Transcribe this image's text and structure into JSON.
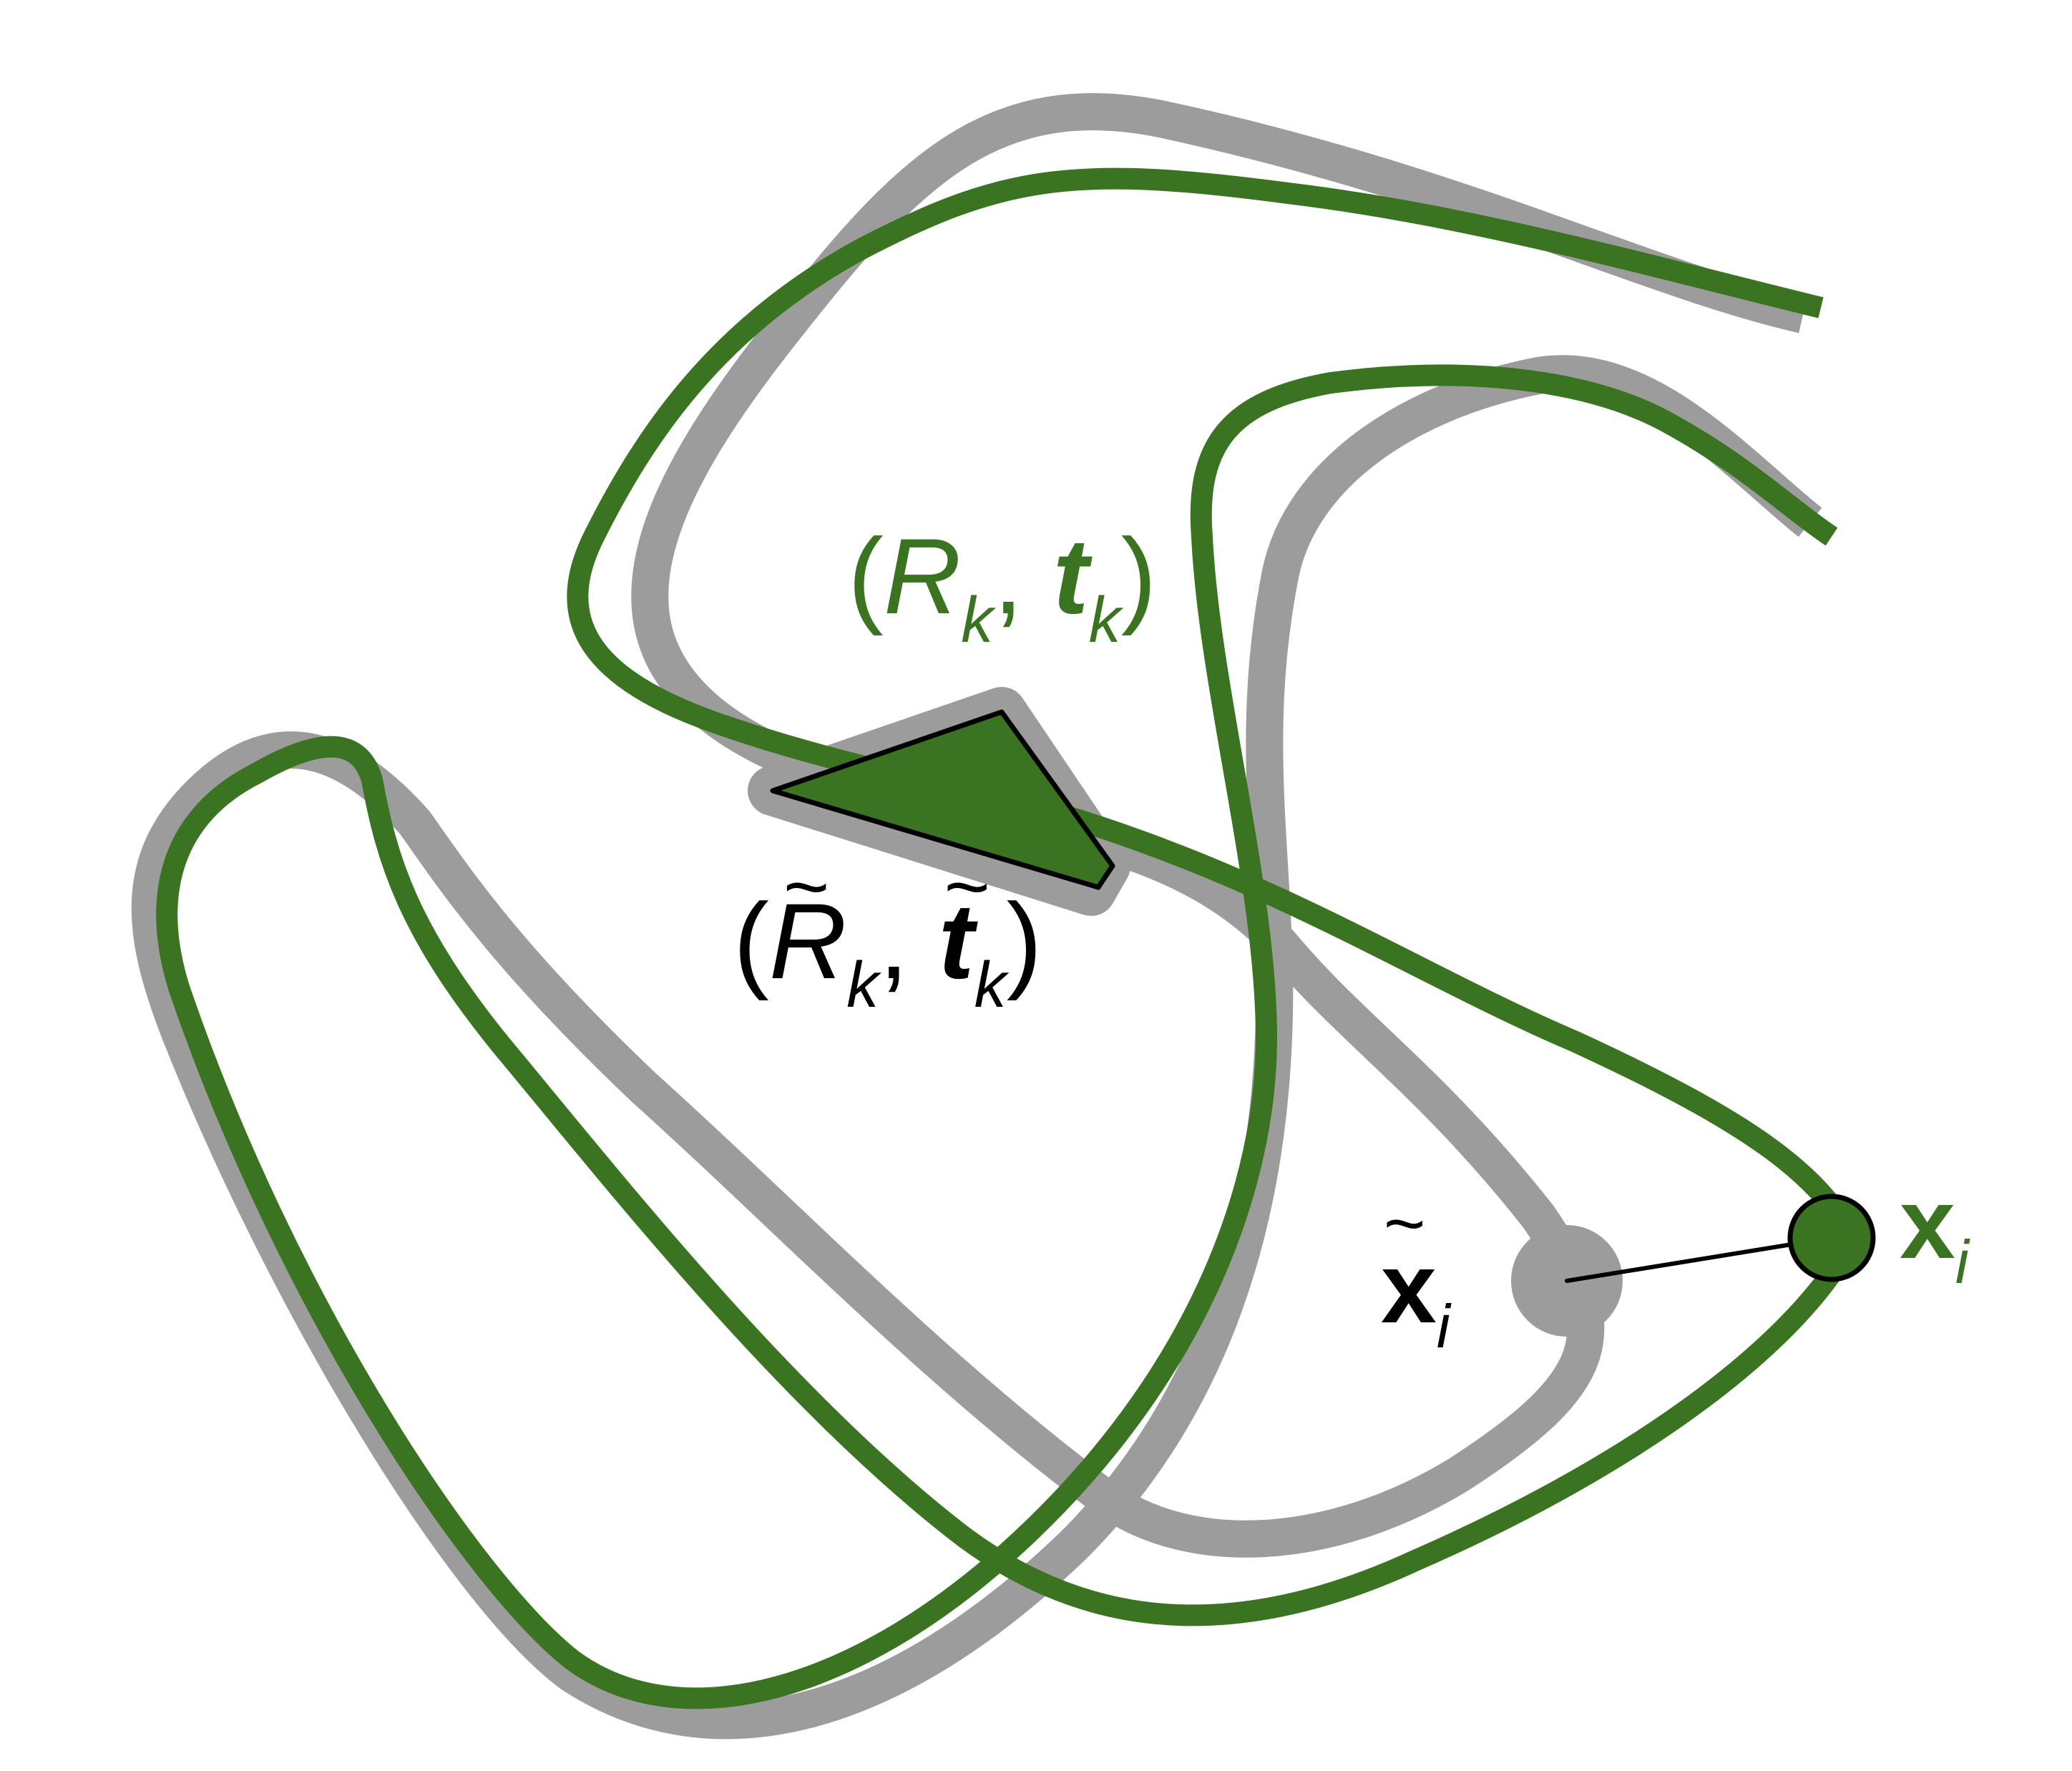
{
  "colors": {
    "accent_green": "#3a7420",
    "reference_gray": "#9c9c9c",
    "outline_black": "#000000",
    "background": "#ffffff"
  },
  "labels": {
    "pose_estimated": {
      "open": "(",
      "R": "R",
      "R_sub": "k",
      "comma": ",",
      "t": "t",
      "t_sub": "k",
      "close": ")"
    },
    "pose_reference": {
      "open": "(",
      "R": "R",
      "R_sub": "k",
      "comma": ",",
      "t": "t",
      "t_sub": "k",
      "close": ")",
      "tilde": "~"
    },
    "point_estimated": {
      "x": "x",
      "sub": "i"
    },
    "point_reference": {
      "x": "x",
      "sub": "i",
      "tilde": "~"
    }
  },
  "icons": {
    "frame": "triangle-frame-icon",
    "atom": "circle-atom-icon"
  }
}
